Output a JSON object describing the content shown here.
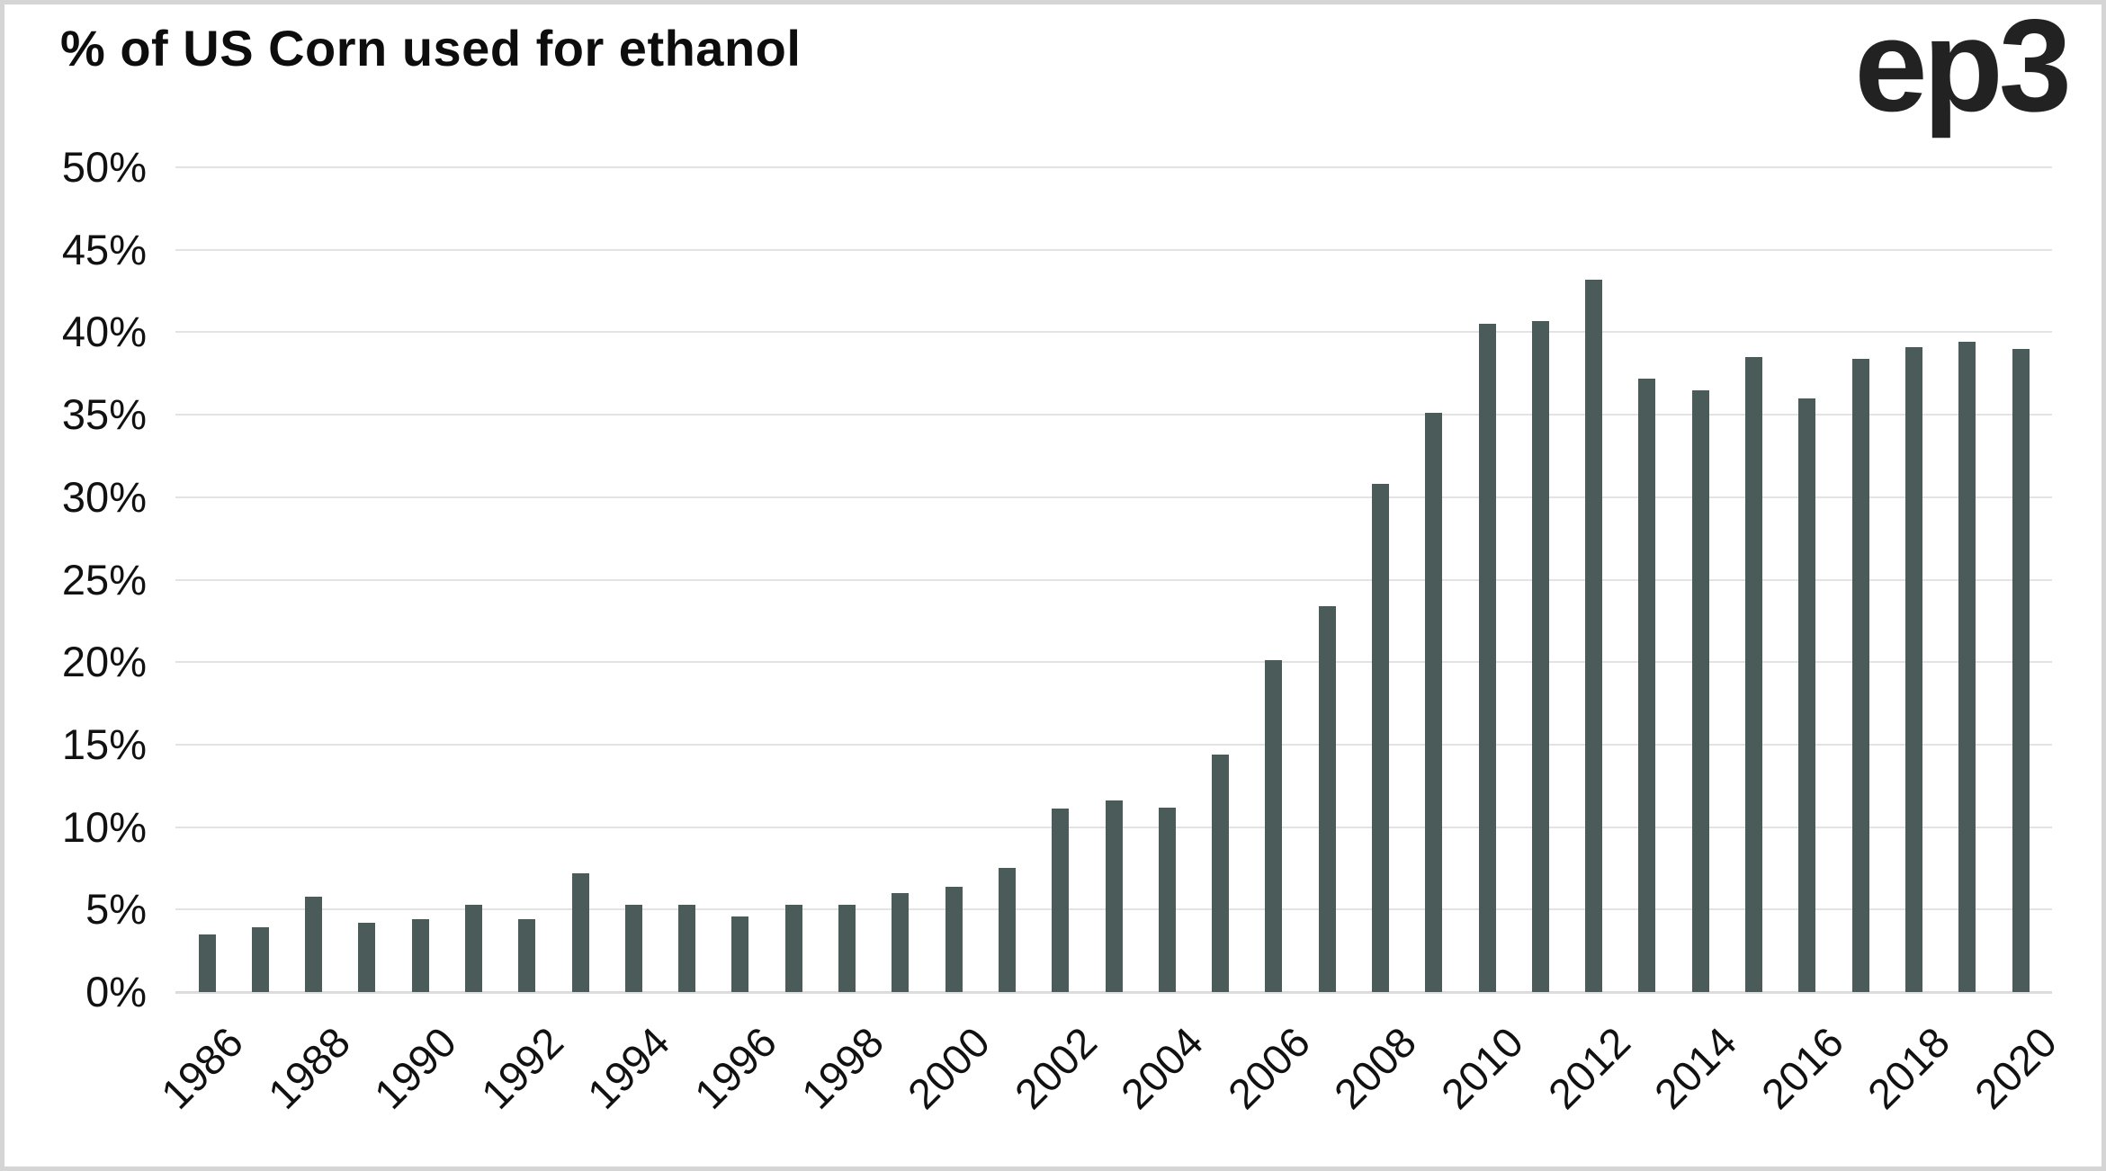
{
  "page": {
    "logo_text": "ep3"
  },
  "colors": {
    "bar": "#4a5b5a",
    "gridline": "#e3e3e3",
    "baseline": "#dcdcdc",
    "text": "#111111",
    "frame_border": "#d5d5d5",
    "background": "#ffffff"
  },
  "chart_data": {
    "type": "bar",
    "title": "% of US Corn used for ethanol",
    "xlabel": "",
    "ylabel": "",
    "ylim": [
      0,
      50
    ],
    "ytick_step": 5,
    "grid": "horizontal",
    "legend": "none",
    "categories": [
      1986,
      1987,
      1988,
      1989,
      1990,
      1991,
      1992,
      1993,
      1994,
      1995,
      1996,
      1997,
      1998,
      1999,
      2000,
      2001,
      2002,
      2003,
      2004,
      2005,
      2006,
      2007,
      2008,
      2009,
      2010,
      2011,
      2012,
      2013,
      2014,
      2015,
      2016,
      2017,
      2018,
      2019,
      2020
    ],
    "values": [
      3.5,
      3.9,
      5.8,
      4.2,
      4.4,
      5.3,
      4.4,
      7.2,
      5.3,
      5.3,
      4.6,
      5.3,
      5.3,
      6.0,
      6.4,
      7.5,
      11.1,
      11.6,
      11.2,
      14.4,
      20.1,
      23.4,
      30.8,
      35.1,
      40.5,
      40.7,
      43.2,
      37.2,
      36.5,
      38.5,
      36.0,
      38.4,
      39.1,
      39.4,
      39.0
    ],
    "ytick_labels": [
      "50%",
      "45%",
      "40%",
      "35%",
      "30%",
      "25%",
      "20%",
      "15%",
      "10%",
      "5%",
      "0%"
    ],
    "xtick_labels": [
      "1986",
      "1988",
      "1990",
      "1992",
      "1994",
      "1996",
      "1998",
      "2000",
      "2002",
      "2004",
      "2006",
      "2008",
      "2010",
      "2012",
      "2014",
      "2016",
      "2018",
      "2020"
    ]
  }
}
